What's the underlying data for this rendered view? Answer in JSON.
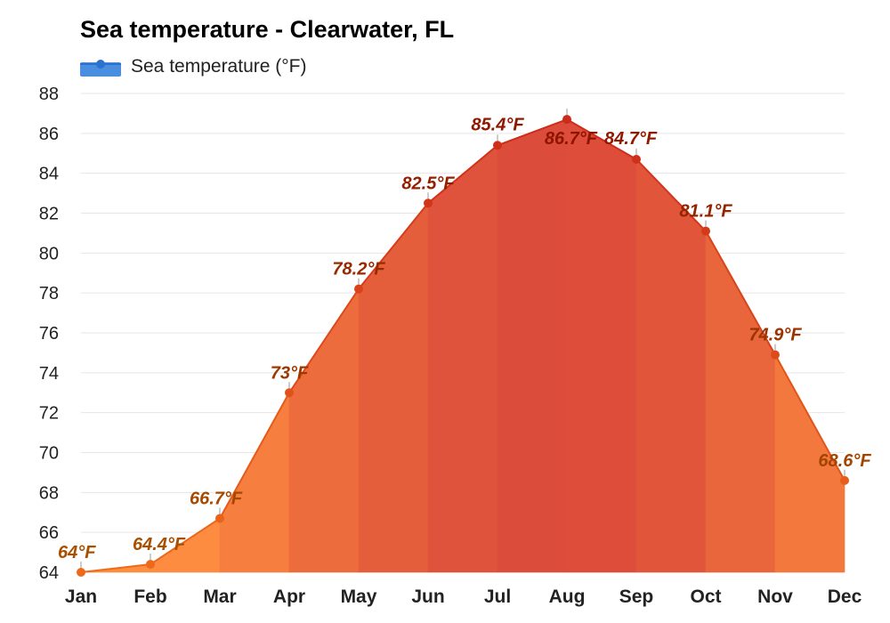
{
  "chart_data": {
    "type": "area",
    "title": "Sea temperature - Clearwater, FL",
    "legend": {
      "label": "Sea temperature (°F)",
      "position": "top-left"
    },
    "categories": [
      "Jan",
      "Feb",
      "Mar",
      "Apr",
      "May",
      "Jun",
      "Jul",
      "Aug",
      "Sep",
      "Oct",
      "Nov",
      "Dec"
    ],
    "series": [
      {
        "name": "Sea temperature (°F)",
        "values": [
          64,
          64.4,
          66.7,
          73,
          78.2,
          82.5,
          85.4,
          86.7,
          84.7,
          81.1,
          74.9,
          68.6
        ],
        "labels": [
          "64°F",
          "64.4°F",
          "66.7°F",
          "73°F",
          "78.2°F",
          "82.5°F",
          "85.4°F",
          "86.7°F",
          "84.7°F",
          "81.1°F",
          "74.9°F",
          "68.6°F"
        ]
      }
    ],
    "yticks": [
      "64",
      "66",
      "68",
      "70",
      "72",
      "74",
      "76",
      "78",
      "80",
      "82",
      "84",
      "86",
      "88"
    ],
    "ylim": [
      64,
      88
    ],
    "grid": true,
    "xlabel": "",
    "ylabel": ""
  },
  "colors": {
    "cool": "#ff9040",
    "warm": "#db4a3a",
    "line_cool": "#ee6a1a",
    "line_warm": "#cc2a1a",
    "label_cool": "#a85000",
    "label_warm": "#8e1400",
    "legend_fill": "#4a8ee0"
  }
}
